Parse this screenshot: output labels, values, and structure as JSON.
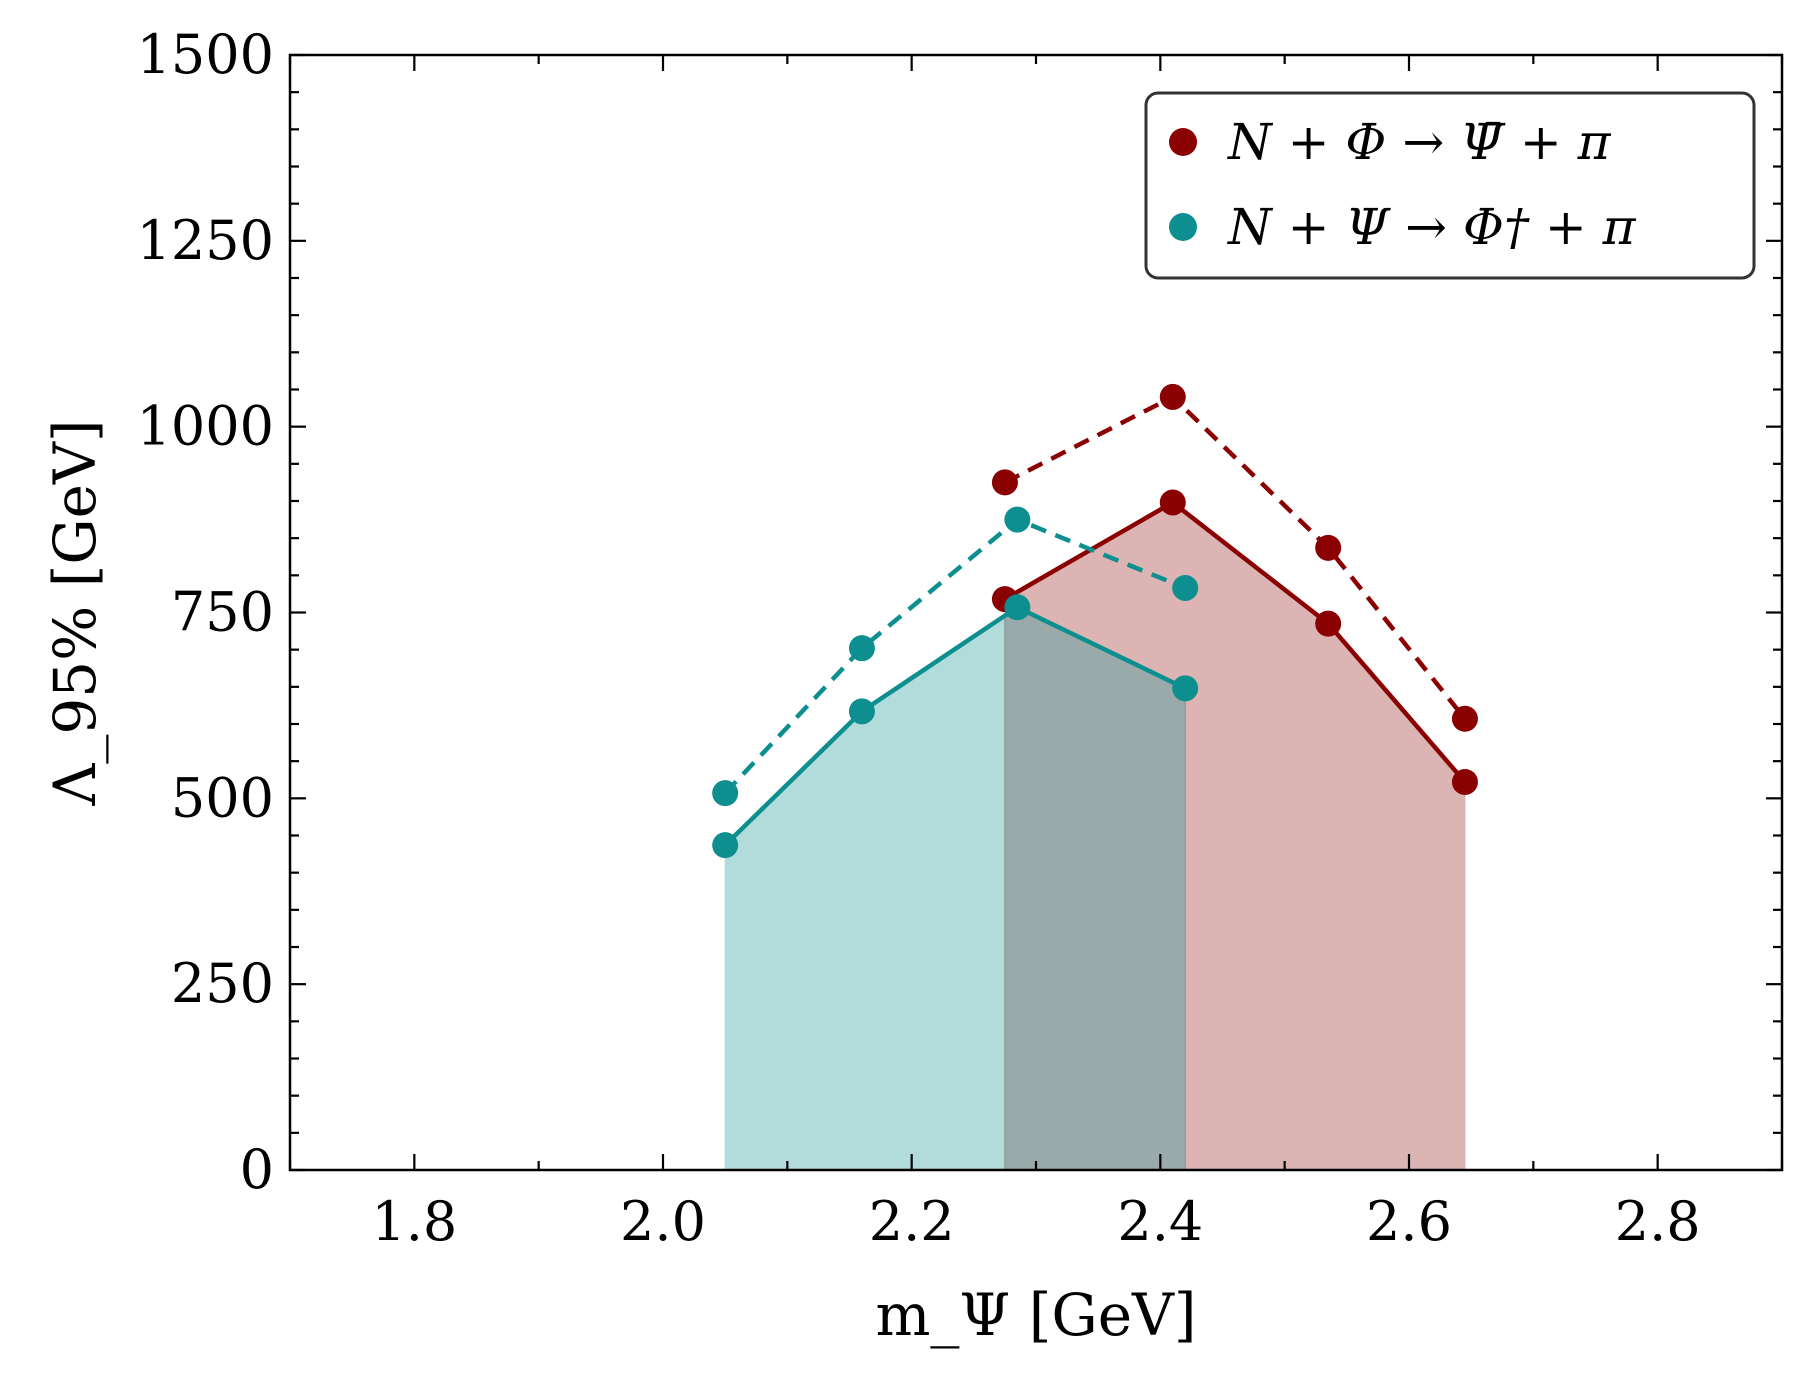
{
  "chart_data": {
    "type": "line",
    "xlabel": "m_Ψ [GeV]",
    "ylabel": "Λ_95% [GeV]",
    "xlim": [
      1.7,
      2.9
    ],
    "ylim": [
      0,
      1500
    ],
    "xticks": [
      1.8,
      2.0,
      2.2,
      2.4,
      2.6,
      2.8
    ],
    "yticks": [
      0,
      250,
      500,
      750,
      1000,
      1250,
      1500
    ],
    "xtick_labels": [
      "1.8",
      "2.0",
      "2.2",
      "2.4",
      "2.6",
      "2.8"
    ],
    "ytick_labels": [
      "0",
      "250",
      "500",
      "750",
      "1000",
      "1250",
      "1500"
    ],
    "legend_position": "top-right",
    "series": [
      {
        "name": "N + Φ → Ψ̄ + π",
        "color": "#8b0000",
        "fill_color": "#dcb4b4",
        "x": [
          2.275,
          2.41,
          2.535,
          2.645
        ],
        "solid": [
          768,
          898,
          735,
          522
        ],
        "dashed": [
          925,
          1040,
          837,
          607
        ]
      },
      {
        "name": "N + Ψ → Φ† + π",
        "color": "#0d8f8f",
        "fill_color": "#b2dcdc",
        "x": [
          2.05,
          2.16,
          2.285,
          2.42
        ],
        "solid": [
          437,
          617,
          757,
          648
        ],
        "dashed": [
          507,
          702,
          875,
          783
        ]
      }
    ],
    "overlap_fill_color": "#9aa9a9"
  }
}
